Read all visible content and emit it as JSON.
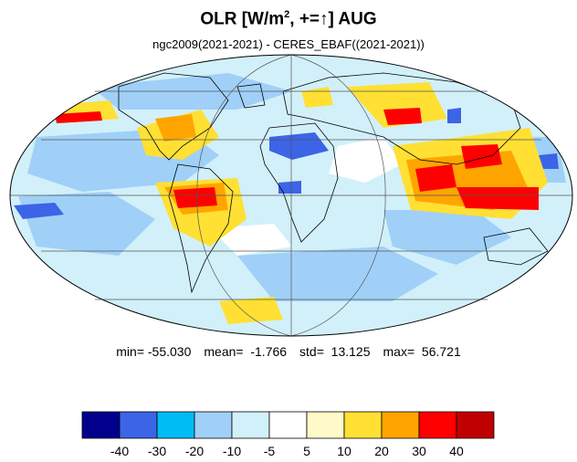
{
  "title": {
    "main": "OLR [W/m",
    "superscript": "2",
    "suffix": ", +=",
    "arrow": "↑",
    "month": "] AUG"
  },
  "subtitle": "ngc2009(2021-2021) - CERES_EBAF((2021-2021))",
  "stats": {
    "min": "min= -55.030",
    "mean": "mean=  -1.766",
    "std": "std=  13.125",
    "max": "max=  56.721"
  },
  "colorbar": {
    "colors": [
      "#00008c",
      "#3c64e6",
      "#00bcf5",
      "#a0d0f8",
      "#d2f0fa",
      "#ffffff",
      "#fffac8",
      "#ffe033",
      "#ffa500",
      "#ff0000",
      "#c00000"
    ],
    "labels": [
      "-40",
      "-30",
      "-20",
      "-10",
      "-5",
      "5",
      "10",
      "20",
      "30",
      "40"
    ]
  },
  "map": {
    "projection": "Mollweide",
    "gridlines": true,
    "field_colors": {
      "light_blue": "#a0d0f8",
      "pale_blue": "#d2f0fa",
      "blue": "#3c64e6",
      "yellow": "#ffe033",
      "pale_yellow": "#fffac8",
      "orange": "#ffa500",
      "red": "#ff0000"
    }
  }
}
